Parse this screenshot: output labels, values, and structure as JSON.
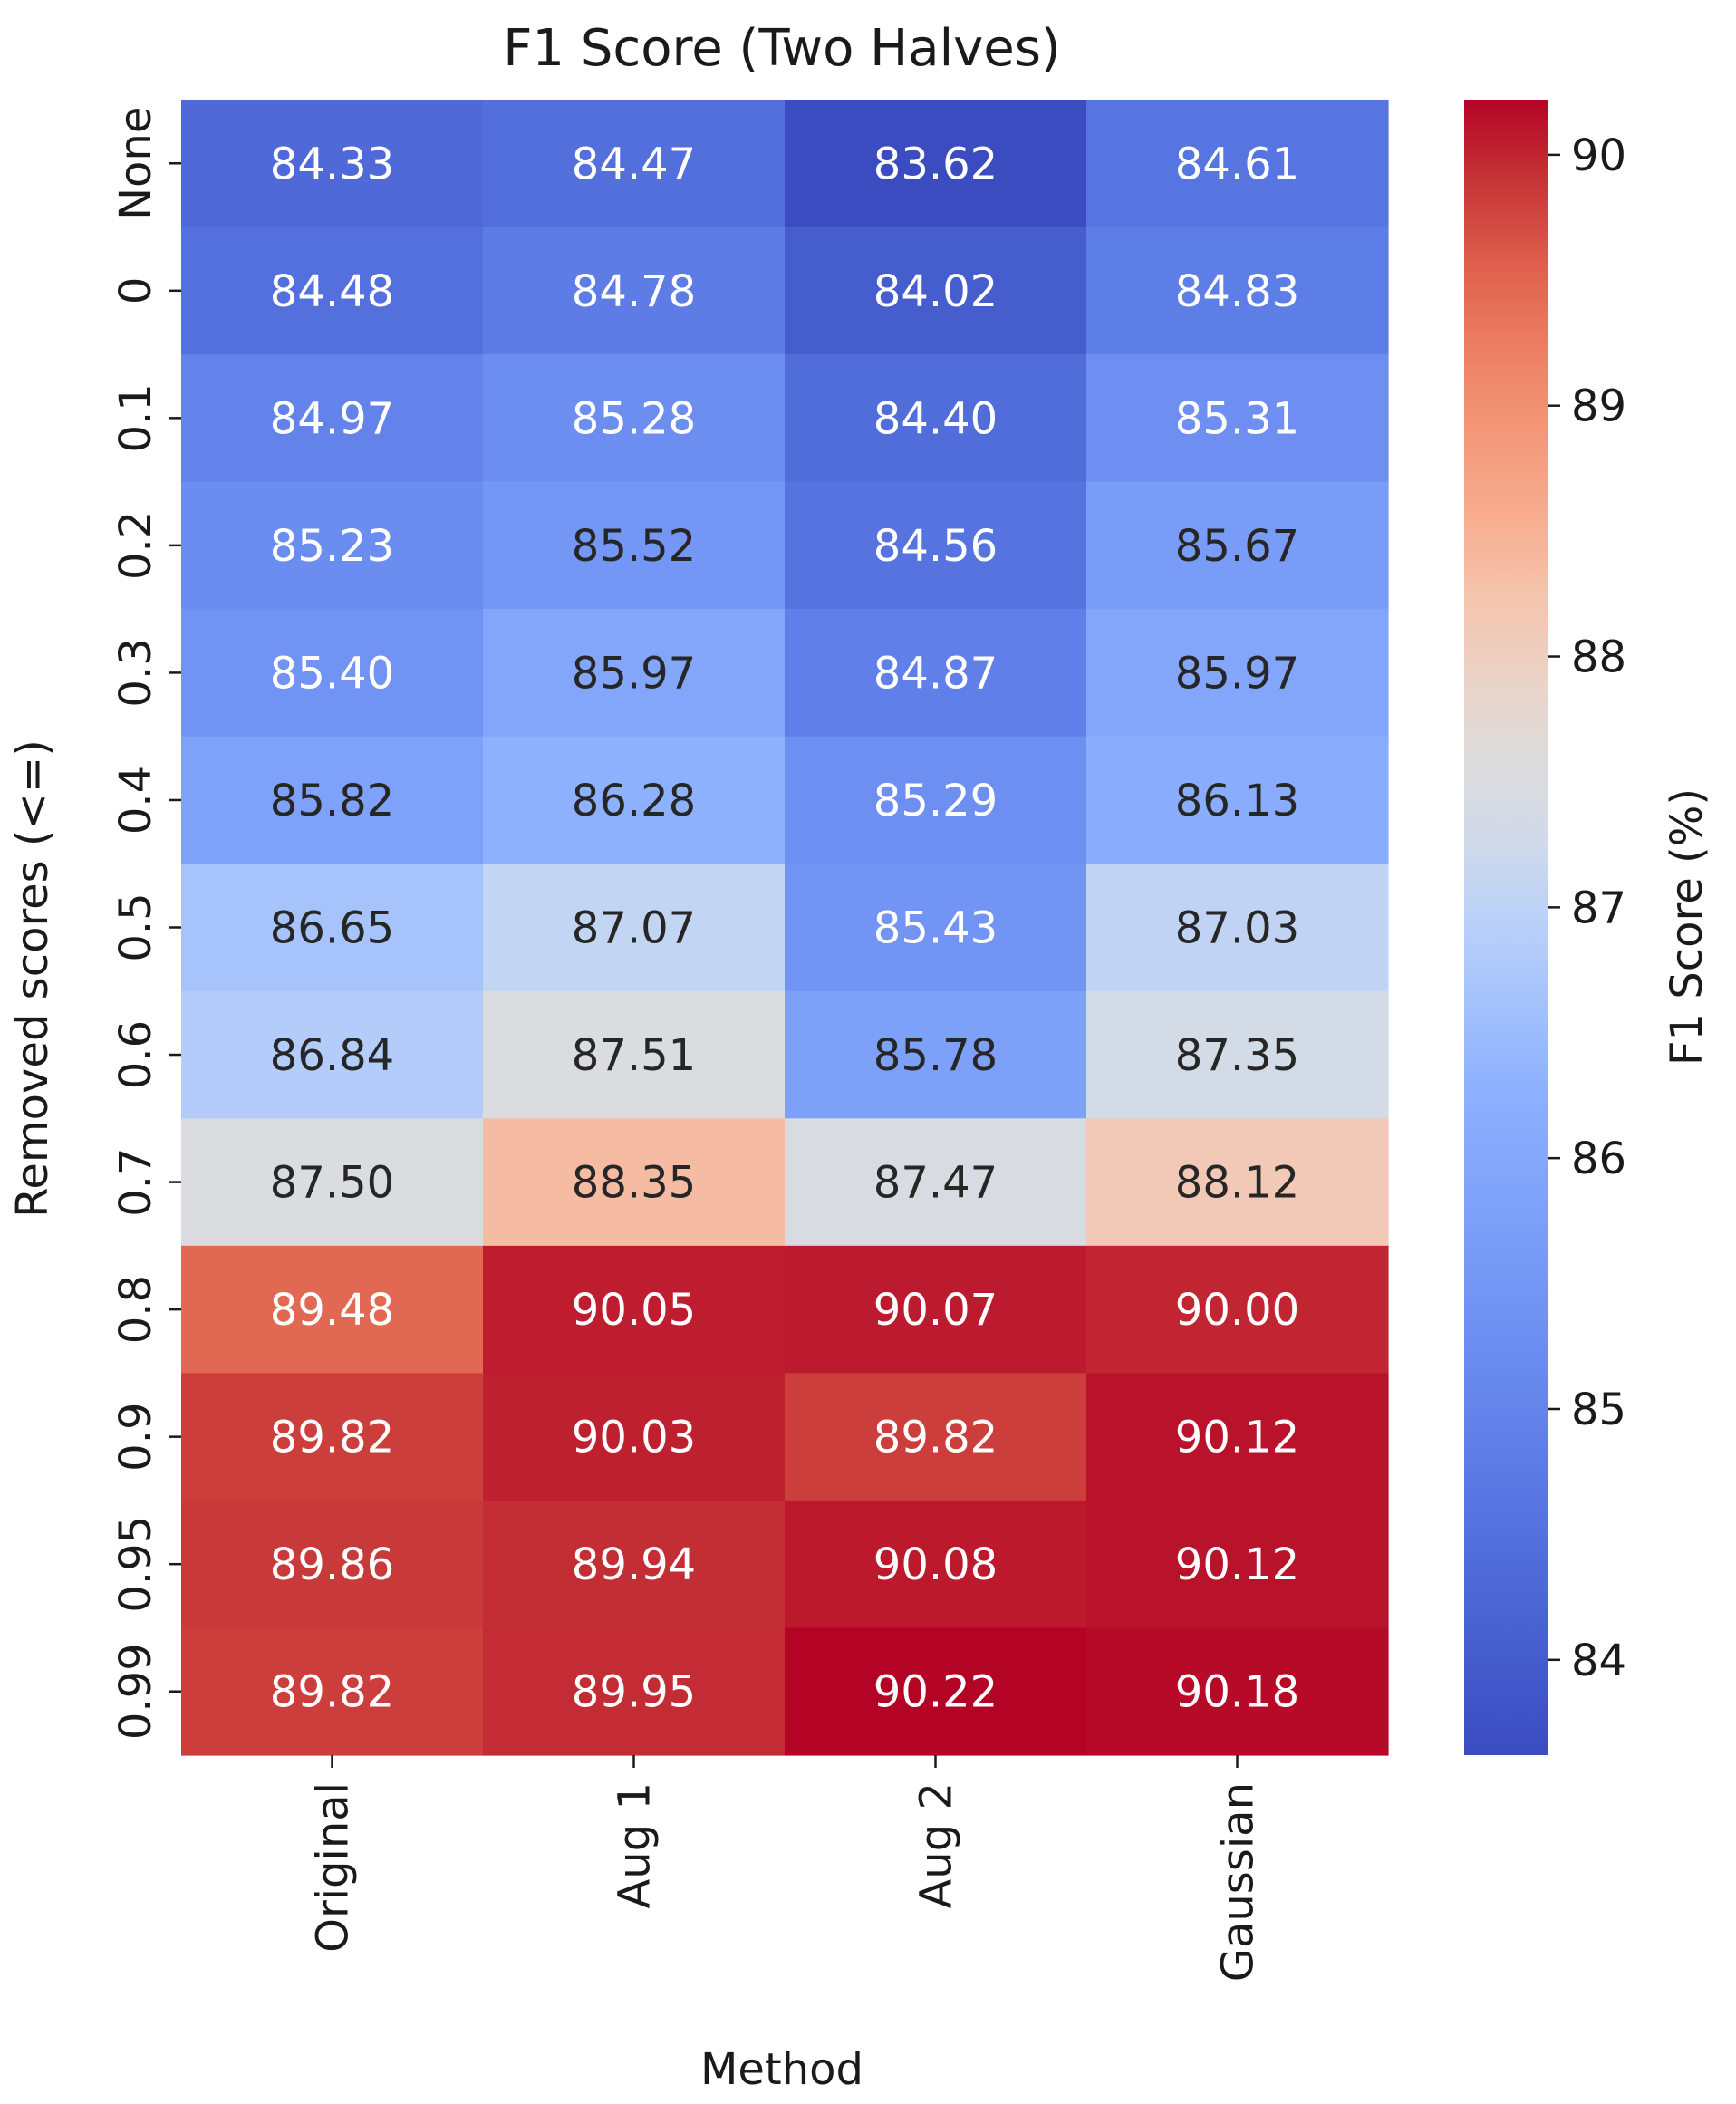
{
  "chart_data": {
    "type": "heatmap",
    "title": "F1 Score (Two Halves)",
    "xlabel": "Method",
    "ylabel": "Removed scores (<=)",
    "colorbar_label": "F1 Score (%)",
    "colormap": "coolwarm",
    "x_categories": [
      "Original",
      "Aug 1",
      "Aug 2",
      "Gaussian"
    ],
    "y_categories": [
      "None",
      "0",
      "0.1",
      "0.2",
      "0.3",
      "0.4",
      "0.5",
      "0.6",
      "0.7",
      "0.8",
      "0.9",
      "0.95",
      "0.99"
    ],
    "values": [
      [
        84.33,
        84.47,
        83.62,
        84.61
      ],
      [
        84.48,
        84.78,
        84.02,
        84.83
      ],
      [
        84.97,
        85.28,
        84.4,
        85.31
      ],
      [
        85.23,
        85.52,
        84.56,
        85.67
      ],
      [
        85.4,
        85.97,
        84.87,
        85.97
      ],
      [
        85.82,
        86.28,
        85.29,
        86.13
      ],
      [
        86.65,
        87.07,
        85.43,
        87.03
      ],
      [
        86.84,
        87.51,
        85.78,
        87.35
      ],
      [
        87.5,
        88.35,
        87.47,
        88.12
      ],
      [
        89.48,
        90.05,
        90.07,
        90.0
      ],
      [
        89.82,
        90.03,
        89.82,
        90.12
      ],
      [
        89.86,
        89.94,
        90.08,
        90.12
      ],
      [
        89.82,
        89.95,
        90.22,
        90.18
      ]
    ],
    "value_format": "0.00",
    "color_range": [
      83.62,
      90.22
    ],
    "colorbar_ticks": [
      84,
      85,
      86,
      87,
      88,
      89,
      90
    ],
    "grid": false
  }
}
